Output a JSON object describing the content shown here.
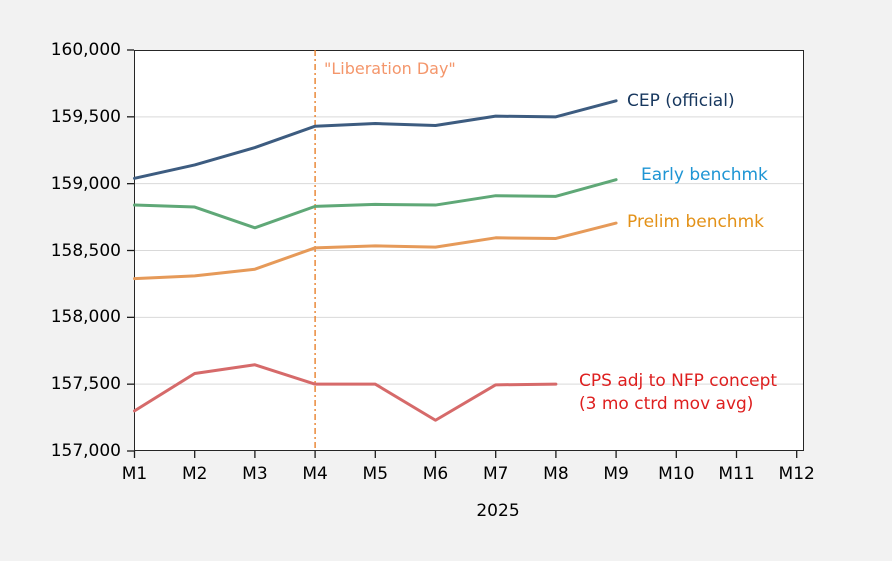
{
  "chart_data": {
    "type": "line",
    "title": "",
    "xlabel": "2025",
    "ylabel": "",
    "categories": [
      "M1",
      "M2",
      "M3",
      "M4",
      "M5",
      "M6",
      "M7",
      "M8",
      "M9",
      "M10",
      "M11",
      "M12"
    ],
    "y_ticks": [
      157000,
      157500,
      158000,
      158500,
      159000,
      159500,
      160000
    ],
    "ylim": [
      157000,
      160000
    ],
    "grid": "horizontal",
    "legend": "inline-labels-right-of-lines",
    "series": [
      {
        "name": "CEP (official)",
        "label": "CEP (official)",
        "color": "#3d5c80",
        "label_color": "#17375e",
        "values": [
          159040,
          159140,
          159270,
          159430,
          159450,
          159435,
          159505,
          159500,
          159620
        ]
      },
      {
        "name": "Early benchmk",
        "label": "Early benchmk",
        "color": "#5fa877",
        "label_color": "#1e95d4",
        "values": [
          158840,
          158825,
          158670,
          158830,
          158845,
          158840,
          158910,
          158905,
          159030
        ]
      },
      {
        "name": "Prelim benchmk",
        "label": "Prelim benchmk",
        "color": "#e69a59",
        "label_color": "#e39117",
        "values": [
          158290,
          158310,
          158360,
          158520,
          158535,
          158525,
          158595,
          158590,
          158705
        ]
      },
      {
        "name": "CPS adj to NFP concept (3 mo ctrd mov avg)",
        "label": "CPS adj to NFP concept",
        "label_line2": "(3 mo ctrd mov avg)",
        "color": "#d66a6a",
        "label_color": "#de1f1f",
        "values": [
          157300,
          157580,
          157645,
          157500,
          157500,
          157230,
          157495,
          157500
        ]
      }
    ],
    "annotations": {
      "vline": {
        "label": "\"Liberation Day\"",
        "at_category": "M4",
        "color": "#e8812c",
        "label_color": "#f4966b",
        "style": "dash-dot"
      }
    },
    "colors": {
      "background": "#f2f2f2",
      "plot_background": "#ffffff",
      "gridline": "#d9d9d9",
      "axis": "#1a1a1a",
      "tick_text": "#000000"
    }
  }
}
